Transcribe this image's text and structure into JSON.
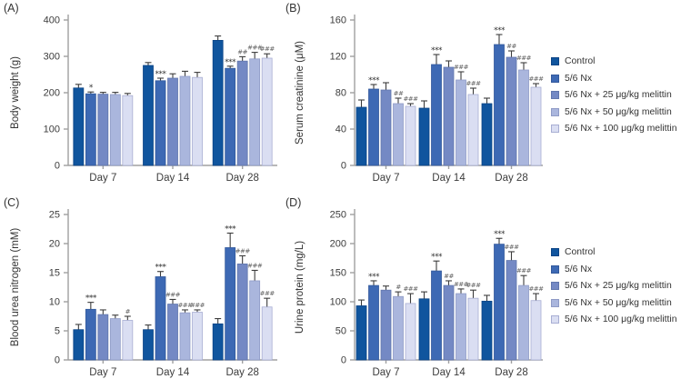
{
  "colors": {
    "series": [
      "#10559e",
      "#3d69b4",
      "#7489c4",
      "#aab6dd",
      "#dadef2"
    ],
    "series_border": [
      "#0c4486",
      "#33599c",
      "#6076ad",
      "#8f9bc6",
      "#a8aed3"
    ],
    "axis": "#a0a0a0",
    "error_bar": "#3c3c3c",
    "sig_star": "#333333",
    "sig_hash": "#666666",
    "text": "#333333",
    "background": "#ffffff"
  },
  "legend": {
    "position": "right",
    "items": [
      "Control",
      "5/6 Nx",
      "5/6 Nx + 25 μg/kg melittin",
      "5/6 Nx + 50 μg/kg melittin",
      "5/6 Nx + 100 μg/kg melittin"
    ]
  },
  "chart_data": [
    {
      "id": "A",
      "panel_label": "(A)",
      "type": "bar",
      "title": "",
      "xlabel": "",
      "ylabel": "Body weight (g)",
      "ylim": [
        0,
        400
      ],
      "yticks": [
        0,
        100,
        200,
        300,
        400
      ],
      "grid": false,
      "categories": [
        "Day 7",
        "Day 14",
        "Day 28"
      ],
      "series": [
        {
          "name": "Control",
          "values": [
            213,
            275,
            344
          ],
          "errors": [
            10,
            8,
            12
          ],
          "sig": [
            "",
            "",
            ""
          ]
        },
        {
          "name": "5/6 Nx",
          "values": [
            197,
            233,
            267
          ],
          "errors": [
            5,
            7,
            6
          ],
          "sig": [
            "*",
            "***",
            "***"
          ]
        },
        {
          "name": "5/6 Nx + 25 μg/kg melittin",
          "values": [
            196,
            240,
            287
          ],
          "errors": [
            5,
            12,
            12
          ],
          "sig": [
            "",
            "",
            "##"
          ]
        },
        {
          "name": "5/6 Nx + 50 μg/kg melittin",
          "values": [
            195,
            245,
            293
          ],
          "errors": [
            6,
            14,
            18
          ],
          "sig": [
            "",
            "",
            "###"
          ]
        },
        {
          "name": "5/6 Nx + 100 μg/kg melittin",
          "values": [
            192,
            242,
            295
          ],
          "errors": [
            6,
            14,
            12
          ],
          "sig": [
            "",
            "",
            "###"
          ]
        }
      ]
    },
    {
      "id": "B",
      "panel_label": "(B)",
      "type": "bar",
      "title": "",
      "xlabel": "",
      "ylabel": "Serum creatinine (μM)",
      "ylim": [
        0,
        160
      ],
      "yticks": [
        0,
        40,
        80,
        120,
        160
      ],
      "grid": false,
      "categories": [
        "Day 7",
        "Day 14",
        "Day 28"
      ],
      "series": [
        {
          "name": "Control",
          "values": [
            64,
            63,
            68
          ],
          "errors": [
            8,
            8,
            6
          ],
          "sig": [
            "",
            "",
            ""
          ]
        },
        {
          "name": "5/6 Nx",
          "values": [
            84,
            111,
            133
          ],
          "errors": [
            5,
            11,
            11
          ],
          "sig": [
            "***",
            "***",
            "***"
          ]
        },
        {
          "name": "5/6 Nx + 25 μg/kg melittin",
          "values": [
            83,
            108,
            119
          ],
          "errors": [
            8,
            7,
            7
          ],
          "sig": [
            "",
            "",
            "##"
          ]
        },
        {
          "name": "5/6 Nx + 50 μg/kg melittin",
          "values": [
            68,
            94,
            105
          ],
          "errors": [
            6,
            9,
            8
          ],
          "sig": [
            "##",
            "###",
            "###"
          ]
        },
        {
          "name": "5/6 Nx + 100 μg/kg melittin",
          "values": [
            65,
            78,
            86
          ],
          "errors": [
            3,
            7,
            4
          ],
          "sig": [
            "###",
            "###",
            "###"
          ]
        }
      ]
    },
    {
      "id": "C",
      "panel_label": "(C)",
      "type": "bar",
      "title": "",
      "xlabel": "",
      "ylabel": "Blood urea nitrogen (mM)",
      "ylim": [
        0,
        25
      ],
      "yticks": [
        0,
        5,
        10,
        15,
        20,
        25
      ],
      "grid": false,
      "categories": [
        "Day 7",
        "Day 14",
        "Day 28"
      ],
      "series": [
        {
          "name": "Control",
          "values": [
            5.2,
            5.2,
            6.2
          ],
          "errors": [
            0.9,
            0.8,
            0.9
          ],
          "sig": [
            "",
            "",
            ""
          ]
        },
        {
          "name": "5/6 Nx",
          "values": [
            8.7,
            14.3,
            19.3
          ],
          "errors": [
            1.2,
            0.9,
            2.5
          ],
          "sig": [
            "***",
            "***",
            "***"
          ]
        },
        {
          "name": "5/6 Nx + 25 μg/kg melittin",
          "values": [
            7.8,
            9.6,
            16.5
          ],
          "errors": [
            0.8,
            0.8,
            1.4
          ],
          "sig": [
            "",
            "###",
            "###"
          ]
        },
        {
          "name": "5/6 Nx + 50 μg/kg melittin",
          "values": [
            7.1,
            8.1,
            13.6
          ],
          "errors": [
            0.6,
            0.5,
            1.8
          ],
          "sig": [
            "",
            "###",
            "###"
          ]
        },
        {
          "name": "5/6 Nx + 100 μg/kg melittin",
          "values": [
            6.8,
            8.2,
            9.1
          ],
          "errors": [
            0.7,
            0.4,
            1.5
          ],
          "sig": [
            "#",
            "###",
            "###"
          ]
        }
      ]
    },
    {
      "id": "D",
      "panel_label": "(D)",
      "type": "bar",
      "title": "",
      "xlabel": "",
      "ylabel": "Urine protein (mg/L)",
      "ylim": [
        0,
        250
      ],
      "yticks": [
        0,
        50,
        100,
        150,
        200,
        250
      ],
      "grid": false,
      "categories": [
        "Day 7",
        "Day 14",
        "Day 28"
      ],
      "series": [
        {
          "name": "Control",
          "values": [
            93,
            105,
            101
          ],
          "errors": [
            10,
            12,
            10
          ],
          "sig": [
            "",
            "",
            ""
          ]
        },
        {
          "name": "5/6 Nx",
          "values": [
            128,
            153,
            199
          ],
          "errors": [
            8,
            17,
            10
          ],
          "sig": [
            "***",
            "***",
            "***"
          ]
        },
        {
          "name": "5/6 Nx + 25 μg/kg melittin",
          "values": [
            120,
            128,
            171
          ],
          "errors": [
            7,
            8,
            15
          ],
          "sig": [
            "",
            "##",
            "###"
          ]
        },
        {
          "name": "5/6 Nx + 50 μg/kg melittin",
          "values": [
            109,
            114,
            128
          ],
          "errors": [
            8,
            8,
            17
          ],
          "sig": [
            "#",
            "###",
            "###"
          ]
        },
        {
          "name": "5/6 Nx + 100 μg/kg melittin",
          "values": [
            97,
            106,
            102
          ],
          "errors": [
            17,
            14,
            12
          ],
          "sig": [
            "###",
            "###",
            "###"
          ]
        }
      ]
    }
  ]
}
